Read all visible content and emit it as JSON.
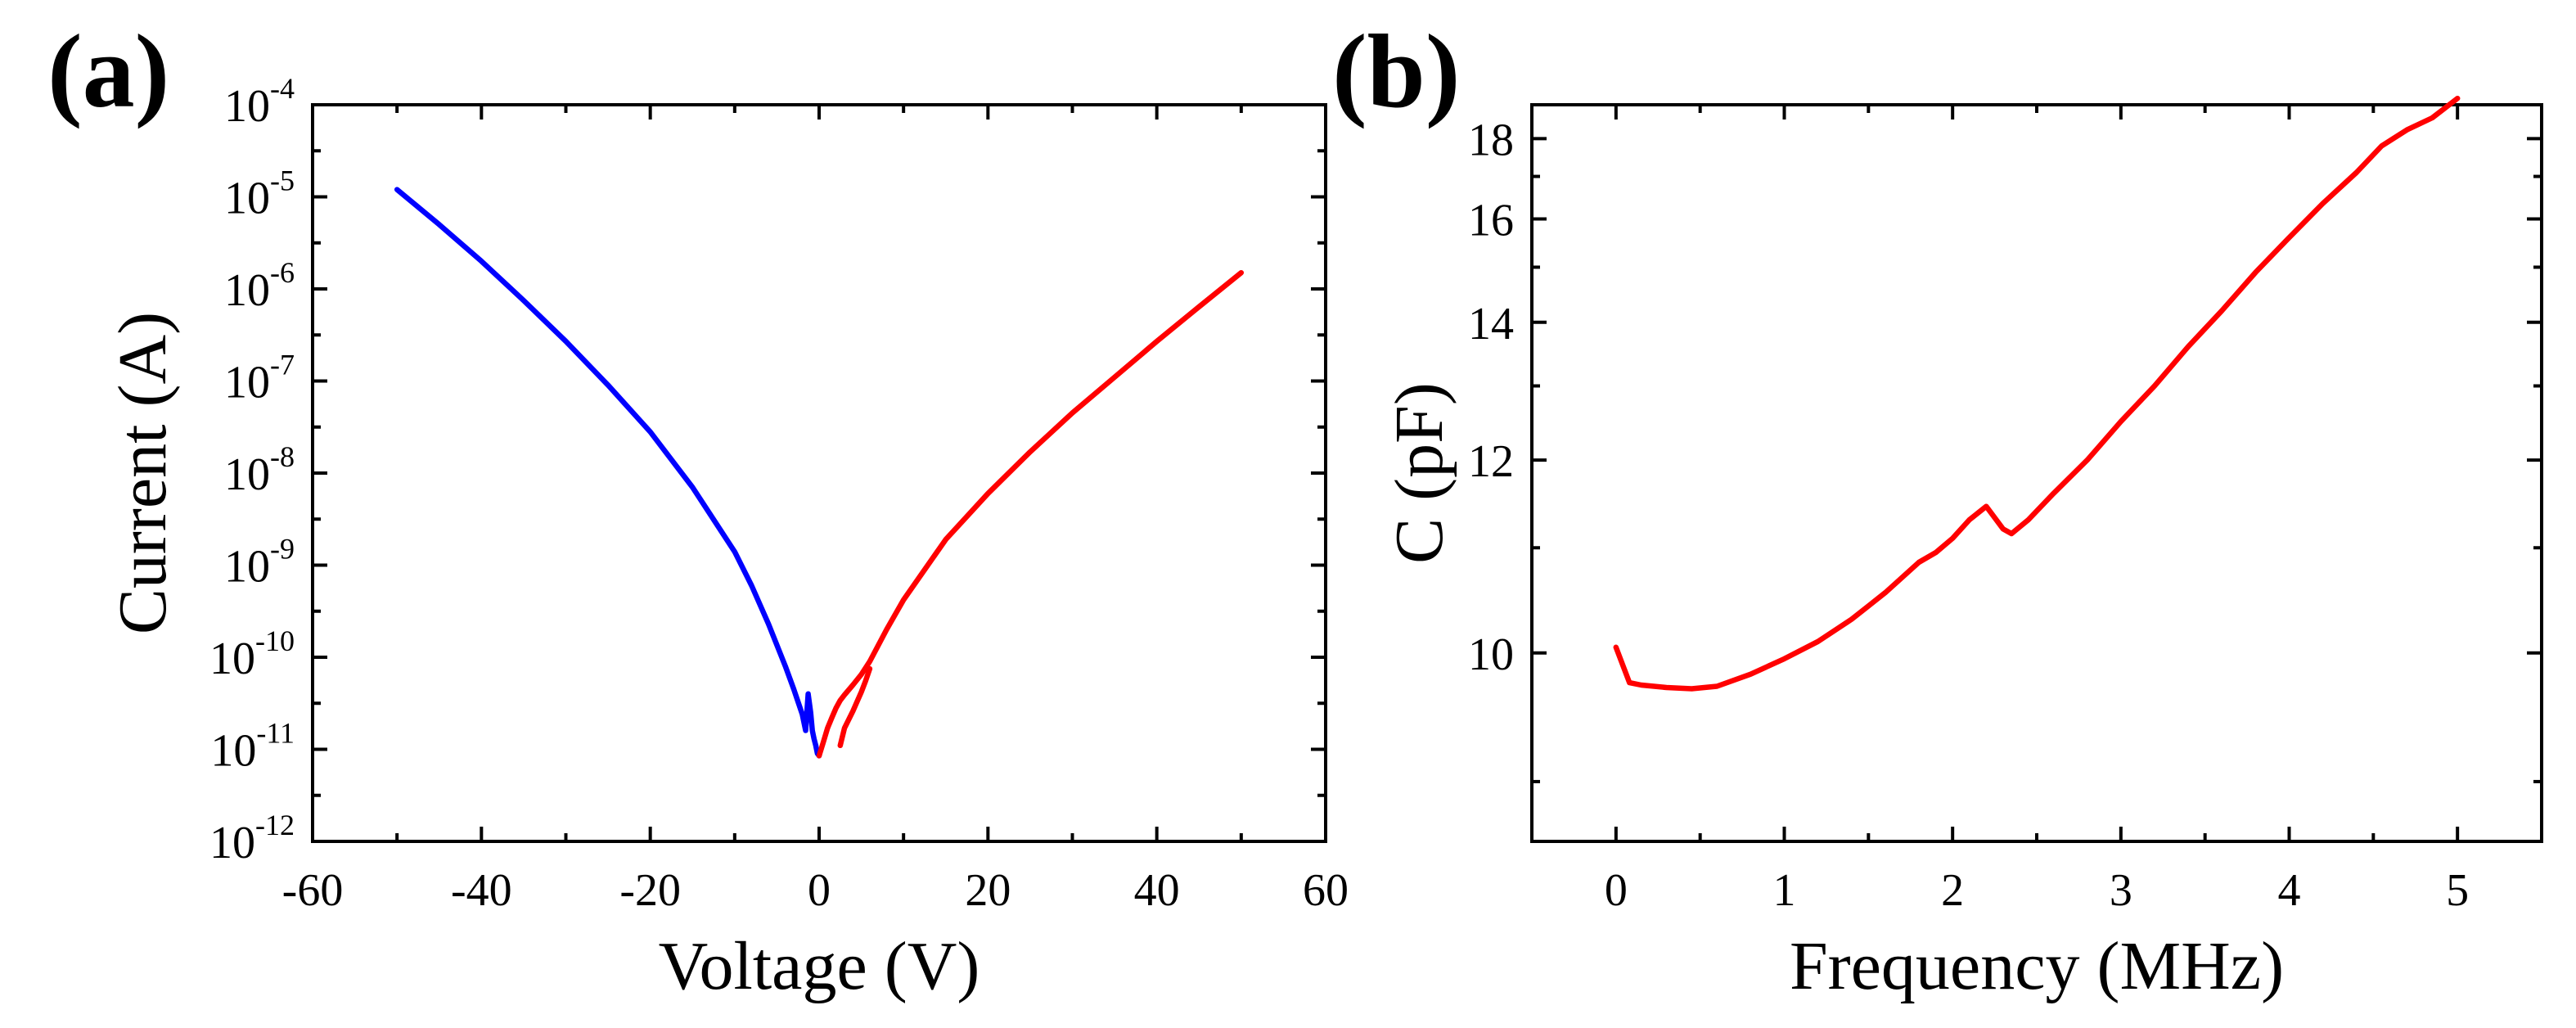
{
  "chart_data": [
    {
      "panel_label": "(a)",
      "type": "line",
      "xlabel": "Voltage (V)",
      "ylabel": "Current (A)",
      "xlim": [
        -60,
        60
      ],
      "ylim": [
        1e-12,
        0.0001
      ],
      "yscale": "log",
      "xticks": [
        -60,
        -40,
        -20,
        0,
        20,
        40,
        60
      ],
      "xtick_labels": [
        "-60",
        "-40",
        "-20",
        "0",
        "20",
        "40",
        "60"
      ],
      "ytick_exponents": [
        -12,
        -11,
        -10,
        -9,
        -8,
        -7,
        -6,
        -5,
        -4
      ],
      "ytick_base": "10",
      "ytick_labels": [
        "10^-12",
        "10^-11",
        "10^-10",
        "10^-9",
        "10^-8",
        "10^-7",
        "10^-6",
        "10^-5",
        "10^-4"
      ],
      "grid": false,
      "series": [
        {
          "color": "#0000ff",
          "x": [
            -50,
            -45,
            -40,
            -35,
            -30,
            -25,
            -20,
            -15,
            -10,
            -8,
            -6,
            -4,
            -3,
            -2,
            -1.6,
            -1.3,
            -1.0,
            -0.8,
            -0.6,
            -0.4,
            -0.2,
            0
          ],
          "y": [
            1.2e-05,
            5e-06,
            2e-06,
            7.5e-07,
            2.7e-07,
            9e-08,
            2.8e-08,
            7e-09,
            1.4e-09,
            6e-10,
            2.3e-10,
            8e-11,
            4.5e-11,
            2.4e-11,
            1.6e-11,
            4e-11,
            2.5e-11,
            1.6e-11,
            1.3e-11,
            1.1e-11,
            9e-12,
            8.5e-12
          ]
        },
        {
          "color": "#ff0000",
          "x": [
            0,
            0.5,
            1,
            1.5,
            2,
            2.5,
            3,
            4,
            5,
            6,
            8,
            10,
            15,
            20,
            25,
            30,
            35,
            40,
            45,
            50
          ],
          "y": [
            8.5e-12,
            1.2e-11,
            1.7e-11,
            2.2e-11,
            2.8e-11,
            3.4e-11,
            3.9e-11,
            5e-11,
            6.5e-11,
            9e-11,
            2e-10,
            4.2e-10,
            1.9e-09,
            6e-09,
            1.7e-08,
            4.5e-08,
            1.1e-07,
            2.7e-07,
            6.4e-07,
            1.5e-06
          ]
        },
        {
          "color": "#ff0000",
          "x": [
            2.5,
            3,
            3.5,
            4,
            4.5,
            5,
            5.5,
            6
          ],
          "y": [
            1.1e-11,
            1.7e-11,
            2.1e-11,
            2.6e-11,
            3.3e-11,
            4.2e-11,
            5.5e-11,
            7.5e-11
          ]
        }
      ]
    },
    {
      "panel_label": "(b)",
      "type": "line",
      "xlabel": "Frequency (MHz)",
      "ylabel": "C (pF)",
      "xlim": [
        -0.5,
        5.5
      ],
      "ylim": [
        8.6,
        19.0
      ],
      "yscale": "reciprocal",
      "xticks": [
        0,
        1,
        2,
        3,
        4,
        5
      ],
      "xtick_labels": [
        "0",
        "1",
        "2",
        "3",
        "4",
        "5"
      ],
      "yticks": [
        10,
        12,
        14,
        16,
        18
      ],
      "ytick_labels": [
        "10",
        "12",
        "14",
        "16",
        "18"
      ],
      "grid": false,
      "series": [
        {
          "color": "#ff0000",
          "x": [
            0.0,
            0.08,
            0.15,
            0.3,
            0.45,
            0.6,
            0.8,
            1.0,
            1.2,
            1.4,
            1.6,
            1.8,
            1.9,
            2.0,
            2.1,
            2.2,
            2.3,
            2.35,
            2.45,
            2.6,
            2.8,
            3.0,
            3.2,
            3.4,
            3.6,
            3.8,
            4.0,
            4.2,
            4.4,
            4.55,
            4.7,
            4.85,
            5.0
          ],
          "y": [
            10.05,
            9.75,
            9.73,
            9.71,
            9.7,
            9.72,
            9.82,
            9.95,
            10.1,
            10.3,
            10.55,
            10.85,
            10.95,
            11.1,
            11.3,
            11.45,
            11.2,
            11.15,
            11.3,
            11.6,
            12.0,
            12.5,
            13.0,
            13.6,
            14.2,
            14.9,
            15.6,
            16.35,
            17.1,
            17.8,
            18.25,
            18.6,
            19.2
          ]
        }
      ]
    }
  ]
}
